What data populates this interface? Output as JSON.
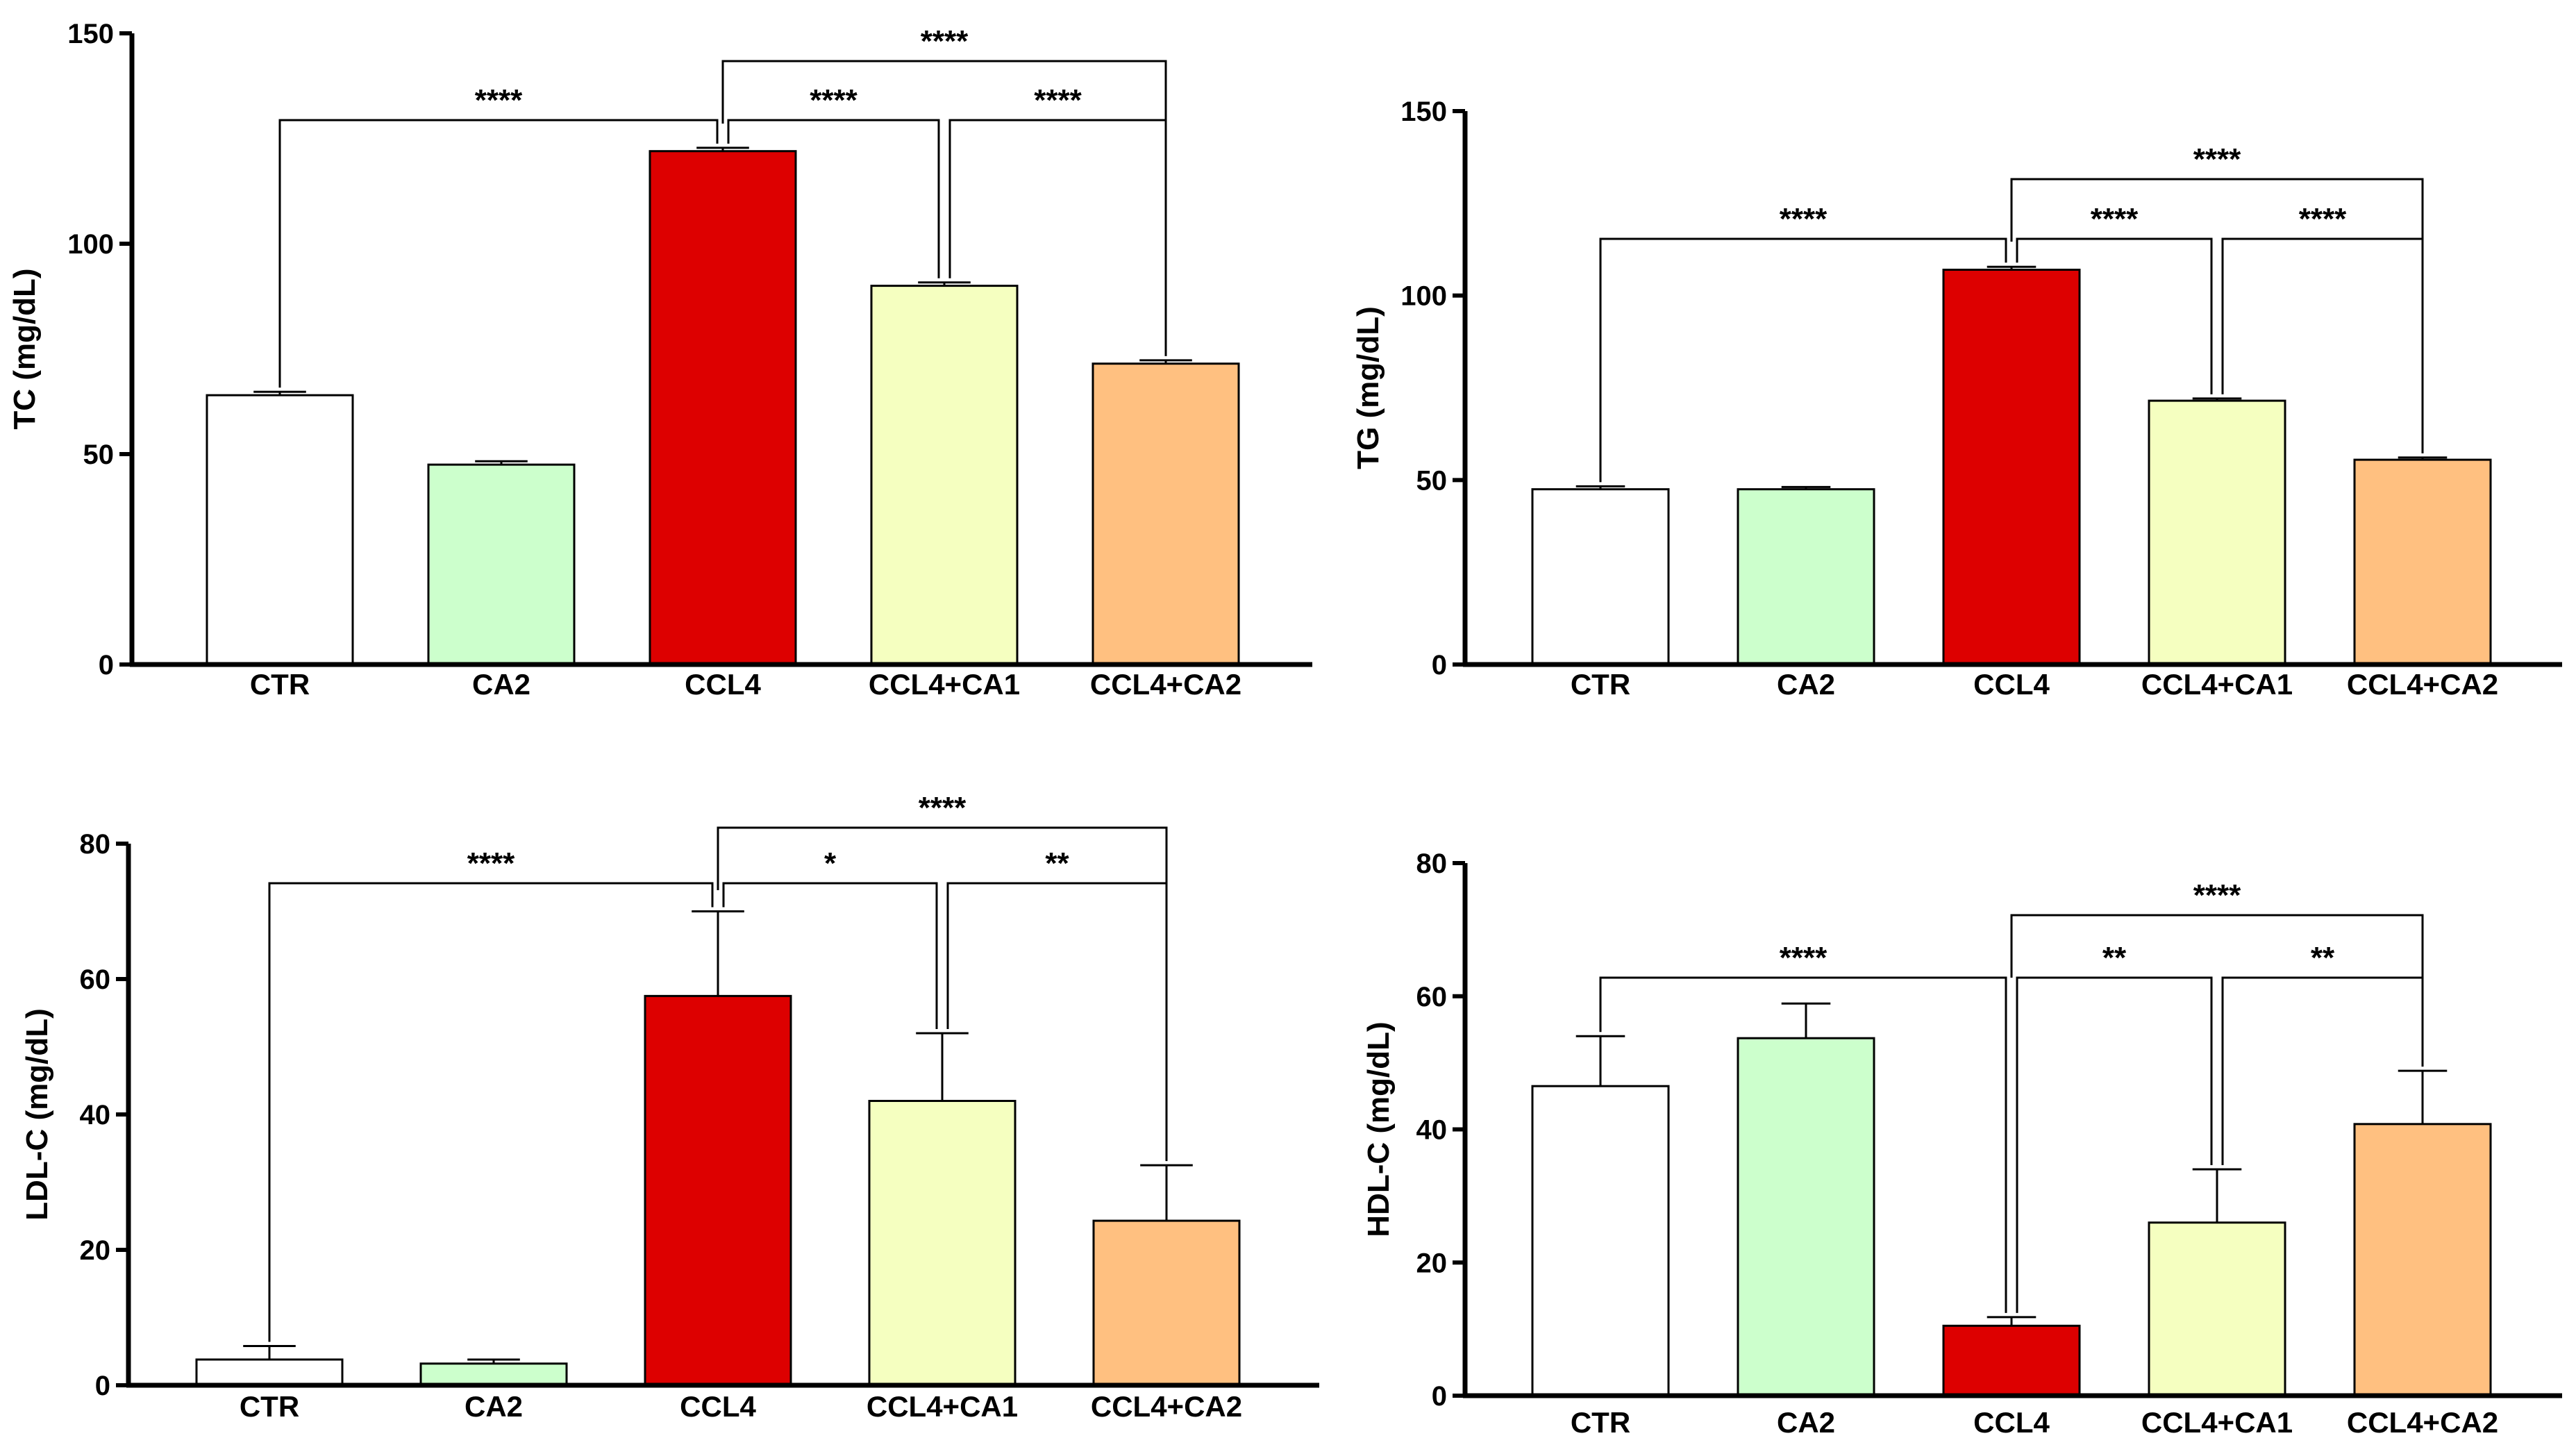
{
  "colors": {
    "CTR": "#ffffff",
    "CA2": "#ccffcc",
    "CCL4": "#dd0000",
    "CCL4+CA1": "#f5ffc0",
    "CCL4+CA2": "#ffc080",
    "axis": "#000000"
  },
  "chart_data": [
    {
      "type": "bar",
      "title": "",
      "xlabel": "",
      "ylabel": "TC (mg/dL)",
      "ylim": [
        0,
        150
      ],
      "yticks": [
        0,
        50,
        100,
        150
      ],
      "categories": [
        "CTR",
        "CA2",
        "CCL4",
        "CCL4+CA1",
        "CCL4+CA2"
      ],
      "values": [
        64,
        47.5,
        122,
        90,
        71.5
      ],
      "errors": [
        0.8,
        0.8,
        0.8,
        0.8,
        0.8
      ],
      "significance": [
        {
          "from": "CTR",
          "to": "CCL4",
          "label": "****",
          "level": 1
        },
        {
          "from": "CCL4",
          "to": "CCL4+CA1",
          "label": "****",
          "level": 1
        },
        {
          "from": "CCL4+CA1",
          "to": "CCL4+CA2",
          "label": "****",
          "level": 1
        },
        {
          "from": "CCL4",
          "to": "CCL4+CA2",
          "label": "****",
          "level": 2
        }
      ]
    },
    {
      "type": "bar",
      "title": "",
      "xlabel": "",
      "ylabel": "TG (mg/dL)",
      "ylim": [
        0,
        150
      ],
      "yticks": [
        0,
        50,
        100,
        150
      ],
      "categories": [
        "CTR",
        "CA2",
        "CCL4",
        "CCL4+CA1",
        "CCL4+CA2"
      ],
      "values": [
        47.5,
        47.5,
        107,
        71.5,
        55.5
      ],
      "errors": [
        0.8,
        0.6,
        0.8,
        0.6,
        0.6
      ],
      "significance": [
        {
          "from": "CTR",
          "to": "CCL4",
          "label": "****",
          "level": 1
        },
        {
          "from": "CCL4",
          "to": "CCL4+CA1",
          "label": "****",
          "level": 1
        },
        {
          "from": "CCL4+CA1",
          "to": "CCL4+CA2",
          "label": "****",
          "level": 1
        },
        {
          "from": "CCL4",
          "to": "CCL4+CA2",
          "label": "****",
          "level": 2
        }
      ]
    },
    {
      "type": "bar",
      "title": "",
      "xlabel": "",
      "ylabel": "LDL-C (mg/dL)",
      "ylim": [
        0,
        80
      ],
      "yticks": [
        0,
        20,
        40,
        60,
        80
      ],
      "categories": [
        "CTR",
        "CA2",
        "CCL4",
        "CCL4+CA1",
        "CCL4+CA2"
      ],
      "values": [
        3.8,
        3.2,
        57.5,
        42,
        24.3
      ],
      "errors": [
        2,
        0.6,
        12.5,
        10,
        8.2
      ],
      "significance": [
        {
          "from": "CTR",
          "to": "CCL4",
          "label": "****",
          "level": 1
        },
        {
          "from": "CCL4",
          "to": "CCL4+CA1",
          "label": "*",
          "level": 1
        },
        {
          "from": "CCL4+CA1",
          "to": "CCL4+CA2",
          "label": "**",
          "level": 1
        },
        {
          "from": "CCL4",
          "to": "CCL4+CA2",
          "label": "****",
          "level": 2
        }
      ]
    },
    {
      "type": "bar",
      "title": "",
      "xlabel": "",
      "ylabel": "HDL-C (mg/dL)",
      "ylim": [
        0,
        80
      ],
      "yticks": [
        0,
        20,
        40,
        60,
        80
      ],
      "categories": [
        "CTR",
        "CA2",
        "CCL4",
        "CCL4+CA1",
        "CCL4+CA2"
      ],
      "values": [
        46.5,
        53.7,
        10.5,
        26,
        40.8
      ],
      "errors": [
        7.5,
        5.2,
        1.3,
        8,
        8
      ],
      "significance": [
        {
          "from": "CTR",
          "to": "CCL4",
          "label": "****",
          "level": 1
        },
        {
          "from": "CCL4",
          "to": "CCL4+CA1",
          "label": "**",
          "level": 1
        },
        {
          "from": "CCL4+CA1",
          "to": "CCL4+CA2",
          "label": "**",
          "level": 1
        },
        {
          "from": "CCL4",
          "to": "CCL4+CA2",
          "label": "****",
          "level": 2
        }
      ]
    }
  ]
}
